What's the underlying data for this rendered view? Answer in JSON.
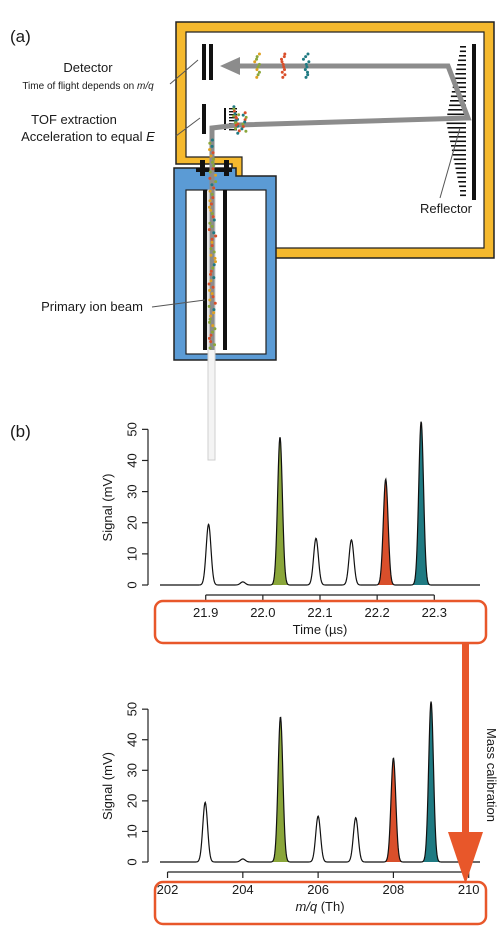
{
  "panel_a": {
    "label": "(a)",
    "detector": {
      "line1": "Detector",
      "line2_prefix": "Time of flight depends on ",
      "line2_italic": "m/q"
    },
    "tof": {
      "line1": "TOF extraction",
      "line2_prefix": "Acceleration to equal ",
      "line2_italic": "E"
    },
    "reflector": "Reflector",
    "primary_beam": "Primary ion beam",
    "colors": {
      "housing": "#f5b92e",
      "source": "#5b9bd5",
      "beam": "#8c8c8c",
      "arrow": "#e8572a"
    }
  },
  "panel_b": {
    "label": "(b)",
    "mass_calibration": "Mass calibration"
  },
  "chart_data": [
    {
      "type": "line",
      "ylabel": "Signal (mV)",
      "xlabel": "Time (µs)",
      "x_ticks": [
        21.9,
        22.0,
        22.1,
        22.2,
        22.3
      ],
      "x_tick_labels": [
        "21.9",
        "22.0",
        "22.1",
        "22.2",
        "22.3"
      ],
      "y_ticks": [
        0,
        10,
        20,
        30,
        40,
        50
      ],
      "y_tick_labels": [
        "0",
        "10",
        "20",
        "30",
        "40",
        "50"
      ],
      "xlim": [
        21.82,
        22.38
      ],
      "ylim": [
        0,
        53
      ],
      "peaks": [
        {
          "x": 21.905,
          "y": 19.5,
          "fill": ""
        },
        {
          "x": 21.965,
          "y": 1.0,
          "fill": ""
        },
        {
          "x": 22.03,
          "y": 47.5,
          "fill": "#8aa63a"
        },
        {
          "x": 22.093,
          "y": 15.0,
          "fill": ""
        },
        {
          "x": 22.155,
          "y": 14.5,
          "fill": ""
        },
        {
          "x": 22.215,
          "y": 34.0,
          "fill": "#d94f2b"
        },
        {
          "x": 22.277,
          "y": 52.5,
          "fill": "#1f7a82"
        }
      ]
    },
    {
      "type": "line",
      "ylabel": "Signal (mV)",
      "xlabel_italic": "m/q",
      "xlabel_rest": " (Th)",
      "x_ticks": [
        202,
        204,
        206,
        208,
        210
      ],
      "x_tick_labels": [
        "202",
        "204",
        "206",
        "208",
        "210"
      ],
      "y_ticks": [
        0,
        10,
        20,
        30,
        40,
        50
      ],
      "y_tick_labels": [
        "0",
        "10",
        "20",
        "30",
        "40",
        "50"
      ],
      "xlim": [
        201.8,
        210.3
      ],
      "ylim": [
        0,
        53
      ],
      "peaks": [
        {
          "x": 203,
          "y": 19.5,
          "fill": ""
        },
        {
          "x": 204,
          "y": 1.0,
          "fill": ""
        },
        {
          "x": 205,
          "y": 47.5,
          "fill": "#8aa63a"
        },
        {
          "x": 206,
          "y": 15.0,
          "fill": ""
        },
        {
          "x": 207,
          "y": 14.5,
          "fill": ""
        },
        {
          "x": 208,
          "y": 34.0,
          "fill": "#d94f2b"
        },
        {
          "x": 209,
          "y": 52.5,
          "fill": "#1f7a82"
        }
      ]
    }
  ]
}
